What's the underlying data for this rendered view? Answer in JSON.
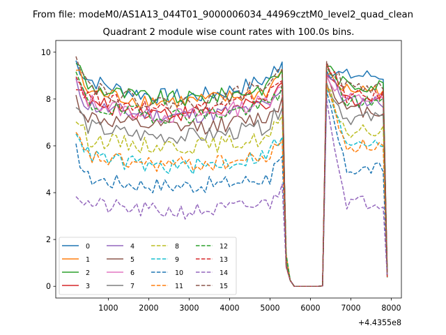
{
  "figure": {
    "suptitle": "From file: modeM0/AS1A13_044T01_9000006034_44969cztM0_level2_quad_clean",
    "title": "Quadrant 2 module wise count rates with 100.0s bins.",
    "offset_label": "+4.4355e8"
  },
  "chart_data": {
    "type": "line",
    "title": "Quadrant 2 module wise count rates with 100.0s bins.",
    "xlabel": "",
    "ylabel": "",
    "x_offset": 443550000,
    "xlim": [
      -300,
      8250
    ],
    "ylim": [
      -0.5,
      10.5
    ],
    "xticks": [
      1000,
      2000,
      3000,
      4000,
      5000,
      6000,
      7000,
      8000
    ],
    "yticks": [
      0,
      2,
      4,
      6,
      8,
      10
    ],
    "grid": false,
    "legend_position": "lower-left",
    "x_start": 200,
    "x_step": 100,
    "num_points": 78,
    "series": [
      {
        "name": "0",
        "style": "solid",
        "color": "#1f77b4",
        "body_level": 8.8,
        "trough": 8.1,
        "start": 9.6,
        "peak": 9.2,
        "seg2": 9.0
      },
      {
        "name": "1",
        "style": "solid",
        "color": "#ff7f0e",
        "body_level": 8.3,
        "trough": 7.9,
        "start": 9.3,
        "peak": 9.0,
        "seg2": 8.4
      },
      {
        "name": "2",
        "style": "solid",
        "color": "#2ca02c",
        "body_level": 8.5,
        "trough": 8.0,
        "start": 9.7,
        "peak": 9.4,
        "seg2": 8.6
      },
      {
        "name": "3",
        "style": "solid",
        "color": "#d62728",
        "body_level": 7.8,
        "trough": 7.4,
        "start": 8.7,
        "peak": 9.0,
        "seg2": 8.0
      },
      {
        "name": "4",
        "style": "solid",
        "color": "#9467bd",
        "body_level": 7.7,
        "trough": 7.3,
        "start": 8.6,
        "peak": 9.1,
        "seg2": 7.9
      },
      {
        "name": "5",
        "style": "solid",
        "color": "#8c564b",
        "body_level": 7.2,
        "trough": 6.8,
        "start": 8.0,
        "peak": 9.0,
        "seg2": 7.5
      },
      {
        "name": "6",
        "style": "solid",
        "color": "#e377c2",
        "body_level": 7.9,
        "trough": 7.3,
        "start": 8.7,
        "peak": 9.0,
        "seg2": 8.0
      },
      {
        "name": "7",
        "style": "solid",
        "color": "#7f7f7f",
        "body_level": 6.8,
        "trough": 6.4,
        "start": 7.7,
        "peak": 8.7,
        "seg2": 7.2
      },
      {
        "name": "8",
        "style": "dashed",
        "color": "#bcbd22",
        "body_level": 6.3,
        "trough": 6.0,
        "start": 7.2,
        "peak": 8.5,
        "seg2": 6.6
      },
      {
        "name": "9",
        "style": "dashed",
        "color": "#17becf",
        "body_level": 5.6,
        "trough": 5.1,
        "start": 6.8,
        "peak": 8.4,
        "seg2": 6.2
      },
      {
        "name": "10",
        "style": "dashed",
        "color": "#1f77b4",
        "body_level": 4.6,
        "trough": 4.3,
        "start": 5.8,
        "peak": 8.3,
        "seg2": 5.0
      },
      {
        "name": "11",
        "style": "dashed",
        "color": "#ff7f0e",
        "body_level": 5.5,
        "trough": 5.2,
        "start": 6.4,
        "peak": 8.6,
        "seg2": 6.0
      },
      {
        "name": "12",
        "style": "dashed",
        "color": "#2ca02c",
        "body_level": 7.7,
        "trough": 7.3,
        "start": 9.1,
        "peak": 9.4,
        "seg2": 7.9
      },
      {
        "name": "13",
        "style": "dashed",
        "color": "#d62728",
        "body_level": 8.1,
        "trough": 7.6,
        "start": 9.0,
        "peak": 9.5,
        "seg2": 8.1
      },
      {
        "name": "14",
        "style": "dashed",
        "color": "#9467bd",
        "body_level": 3.5,
        "trough": 3.2,
        "start": 4.0,
        "peak": 8.0,
        "seg2": 3.6
      },
      {
        "name": "15",
        "style": "dashed",
        "color": "#8c564b",
        "body_level": 8.6,
        "trough": 7.8,
        "start": 10.1,
        "peak": 9.6,
        "seg2": 8.5
      }
    ]
  }
}
